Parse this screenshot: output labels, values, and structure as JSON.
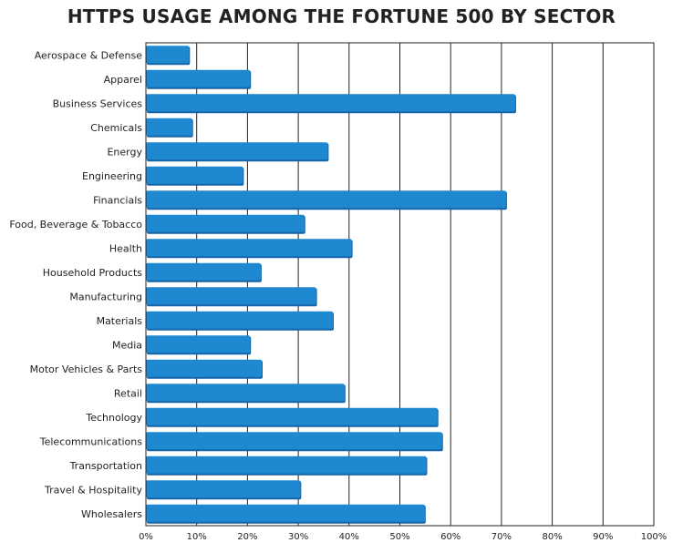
{
  "chart_data": {
    "type": "bar",
    "orientation": "horizontal",
    "title": "HTTPS USAGE AMONG THE FORTUNE 500 BY SECTOR",
    "xlabel": "",
    "ylabel": "",
    "xlim": [
      0,
      100
    ],
    "x_ticks": [
      "0%",
      "10%",
      "20%",
      "30%",
      "40%",
      "50%",
      "60%",
      "70%",
      "80%",
      "90%",
      "100%"
    ],
    "grid": "vertical",
    "legend": "none",
    "bar_color": "#1e88d0",
    "bar_shadow_color": "#1565a8",
    "categories": [
      "Aerospace & Defense",
      "Apparel",
      "Business Services",
      "Chemicals",
      "Energy",
      "Engineering",
      "Financials",
      "Food, Beverage & Tobacco",
      "Health",
      "Household Products",
      "Manufacturing",
      "Materials",
      "Media",
      "Motor Vehicles & Parts",
      "Retail",
      "Technology",
      "Telecommunications",
      "Transportation",
      "Travel & Hospitality",
      "Wholesalers"
    ],
    "values": [
      8.5,
      20.5,
      72.7,
      9.1,
      35.8,
      19.1,
      70.9,
      31.2,
      40.5,
      22.6,
      33.5,
      36.8,
      20.5,
      22.8,
      39.1,
      57.4,
      58.3,
      55.2,
      30.4,
      54.9
    ]
  }
}
